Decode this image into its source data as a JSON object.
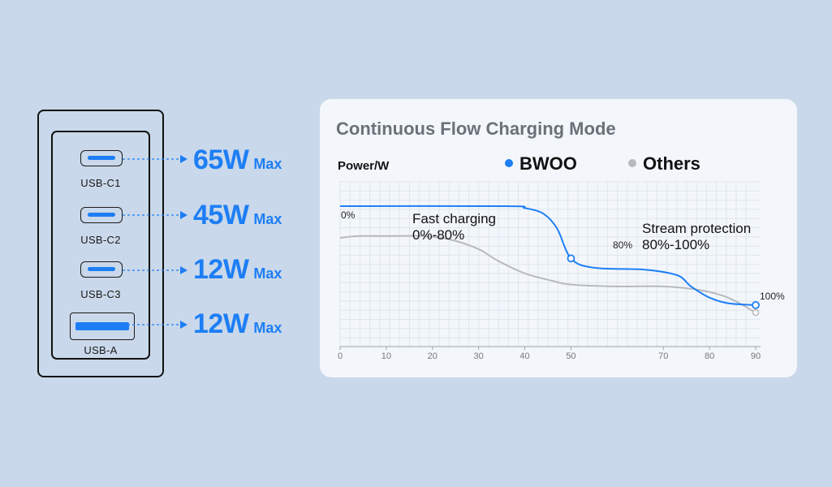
{
  "ports": [
    {
      "name": "usb-c1",
      "label": "USB-C1",
      "type": "c",
      "watt": "65W",
      "max": "Max"
    },
    {
      "name": "usb-c2",
      "label": "USB-C2",
      "type": "c",
      "watt": "45W",
      "max": "Max"
    },
    {
      "name": "usb-c3",
      "label": "USB-C3",
      "type": "c",
      "watt": "12W",
      "max": "Max"
    },
    {
      "name": "usb-a",
      "label": "USB-A",
      "type": "a",
      "watt": "12W",
      "max": "Max"
    }
  ],
  "colors": {
    "accent": "#1d7ef5",
    "others": "#b7b9bd",
    "grid": "#dfe6ee"
  },
  "chart_data": {
    "type": "line",
    "title": "Continuous Flow Charging Mode",
    "ylabel": "Power/W",
    "xlabel": "",
    "x_ticks": [
      0,
      10,
      20,
      30,
      40,
      50,
      70,
      80,
      90
    ],
    "xlim": [
      0,
      90
    ],
    "grid": true,
    "legend_position": "top",
    "series": [
      {
        "name": "BWOO",
        "color": "#1d7ef5",
        "x": [
          0,
          36,
          40,
          44,
          47,
          50,
          55,
          66,
          73,
          76,
          80,
          84,
          90
        ],
        "y": [
          100,
          100,
          99,
          96,
          88,
          72,
          67,
          66,
          63,
          57,
          51,
          48,
          47
        ]
      },
      {
        "name": "Others",
        "color": "#b7b9bd",
        "x": [
          0,
          4,
          10,
          18,
          24,
          30,
          34,
          40,
          46,
          50,
          60,
          70,
          78,
          84,
          90
        ],
        "y": [
          83,
          84,
          84,
          84,
          82,
          77,
          71,
          64,
          60,
          58,
          57,
          57,
          55,
          51,
          43
        ]
      }
    ],
    "annotations": {
      "start": "0%",
      "fast_line1": "Fast charging",
      "fast_line2": "0%-80%",
      "mid_point": "80%",
      "stream_line1": "Stream protection",
      "stream_line2": "80%-100%",
      "end_point": "100%"
    }
  }
}
